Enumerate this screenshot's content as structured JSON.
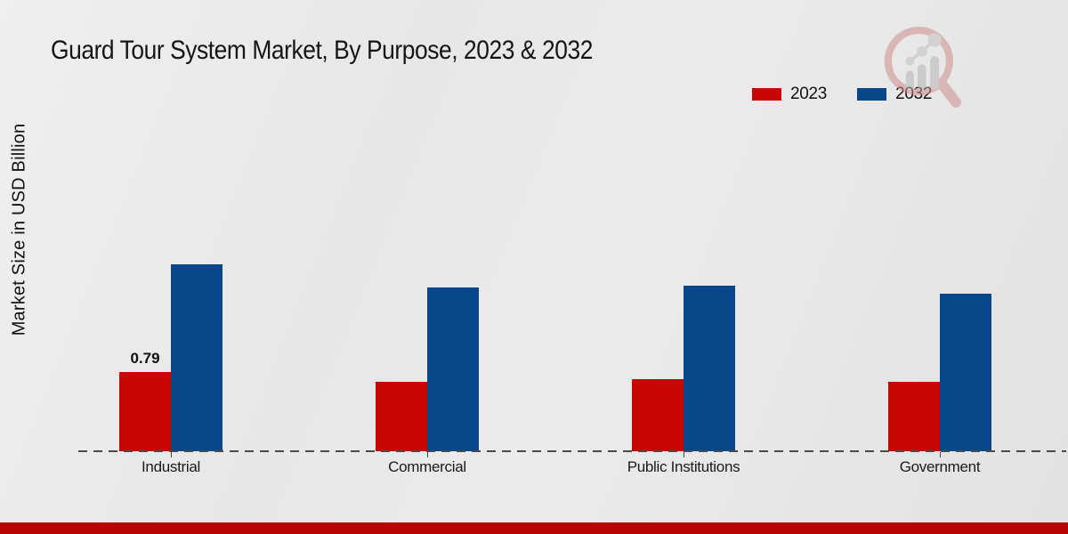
{
  "title": "Guard Tour System Market, By Purpose, 2023 & 2032",
  "y_axis_label": "Market Size in USD Billion",
  "colors": {
    "series_2023": "#c90606",
    "series_2032": "#07478a",
    "footer_stripe": "#b90404",
    "background": "#e8e8e8",
    "baseline": "#4a4a4a"
  },
  "watermark_icon": "magnifier-bar-chart-logo",
  "chart_data": {
    "type": "bar",
    "title": "Guard Tour System Market, By Purpose, 2023 & 2032",
    "categories": [
      "Industrial",
      "Commercial",
      "Public Institutions",
      "Government"
    ],
    "series": [
      {
        "name": "2023",
        "color": "#c90606",
        "values": [
          0.79,
          0.69,
          0.72,
          0.69
        ]
      },
      {
        "name": "2032",
        "color": "#07478a",
        "values": [
          1.86,
          1.63,
          1.65,
          1.57
        ]
      }
    ],
    "data_labels": [
      {
        "series": "2023",
        "category_index": 0,
        "text": "0.79"
      }
    ],
    "xlabel": "",
    "ylabel": "Market Size in USD Billion",
    "ylim": [
      0,
      2.2
    ],
    "grid": false,
    "legend_position": "top-right",
    "baseline_style": "dashed"
  }
}
